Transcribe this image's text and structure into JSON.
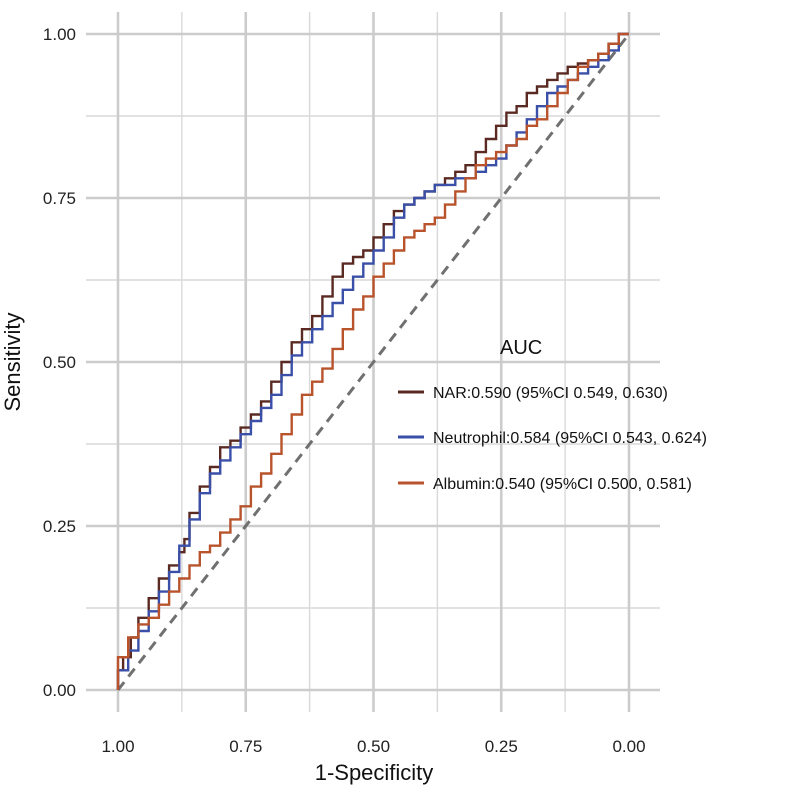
{
  "chart_data": {
    "type": "line",
    "xlabel": "1-Specificity",
    "ylabel": "Sensitivity",
    "x_reversed": true,
    "xlim": [
      1.0,
      0.0
    ],
    "ylim": [
      0.0,
      1.0
    ],
    "x_ticks": [
      "1.00",
      "0.75",
      "0.50",
      "0.25",
      "0.00"
    ],
    "y_ticks": [
      "0.00",
      "0.25",
      "0.50",
      "0.75",
      "1.00"
    ],
    "grid": true,
    "legend": {
      "title": "AUC",
      "placement": "right"
    },
    "reference_line": {
      "style": "dashed",
      "color": "#707070",
      "x": [
        1.0,
        0.0
      ],
      "y": [
        0.0,
        1.0
      ]
    },
    "series": [
      {
        "name": "NAR:0.590 (95%CI 0.549, 0.630)",
        "color": "#5a2a22",
        "x": [
          1.0,
          0.99,
          0.975,
          0.96,
          0.94,
          0.92,
          0.9,
          0.88,
          0.87,
          0.86,
          0.84,
          0.82,
          0.8,
          0.78,
          0.76,
          0.74,
          0.72,
          0.7,
          0.68,
          0.66,
          0.64,
          0.62,
          0.6,
          0.58,
          0.56,
          0.54,
          0.52,
          0.5,
          0.48,
          0.46,
          0.44,
          0.42,
          0.4,
          0.38,
          0.36,
          0.34,
          0.32,
          0.3,
          0.28,
          0.26,
          0.24,
          0.22,
          0.2,
          0.18,
          0.16,
          0.14,
          0.12,
          0.1,
          0.08,
          0.06,
          0.04,
          0.02,
          0.0
        ],
        "y": [
          0.0,
          0.03,
          0.05,
          0.08,
          0.11,
          0.14,
          0.17,
          0.19,
          0.21,
          0.23,
          0.27,
          0.31,
          0.34,
          0.37,
          0.38,
          0.4,
          0.42,
          0.44,
          0.47,
          0.5,
          0.53,
          0.55,
          0.57,
          0.6,
          0.63,
          0.65,
          0.66,
          0.67,
          0.69,
          0.71,
          0.73,
          0.74,
          0.75,
          0.76,
          0.77,
          0.78,
          0.79,
          0.8,
          0.82,
          0.84,
          0.86,
          0.88,
          0.89,
          0.91,
          0.92,
          0.93,
          0.94,
          0.95,
          0.955,
          0.96,
          0.97,
          0.985,
          1.0
        ]
      },
      {
        "name": "Neutrophil:0.584 (95%CI 0.543, 0.624)",
        "color": "#3a4fa8",
        "x": [
          1.0,
          0.98,
          0.96,
          0.94,
          0.92,
          0.9,
          0.88,
          0.86,
          0.84,
          0.82,
          0.8,
          0.78,
          0.76,
          0.74,
          0.72,
          0.7,
          0.68,
          0.66,
          0.64,
          0.62,
          0.6,
          0.58,
          0.56,
          0.54,
          0.52,
          0.5,
          0.48,
          0.46,
          0.44,
          0.42,
          0.4,
          0.38,
          0.36,
          0.34,
          0.32,
          0.3,
          0.28,
          0.26,
          0.24,
          0.22,
          0.2,
          0.18,
          0.16,
          0.14,
          0.12,
          0.1,
          0.08,
          0.06,
          0.04,
          0.02,
          0.0
        ],
        "y": [
          0.0,
          0.03,
          0.06,
          0.09,
          0.12,
          0.15,
          0.18,
          0.22,
          0.26,
          0.3,
          0.33,
          0.35,
          0.37,
          0.39,
          0.41,
          0.43,
          0.45,
          0.48,
          0.51,
          0.53,
          0.55,
          0.57,
          0.59,
          0.61,
          0.63,
          0.65,
          0.67,
          0.69,
          0.72,
          0.74,
          0.75,
          0.76,
          0.77,
          0.77,
          0.78,
          0.78,
          0.79,
          0.8,
          0.81,
          0.83,
          0.85,
          0.87,
          0.89,
          0.91,
          0.92,
          0.93,
          0.94,
          0.95,
          0.96,
          0.975,
          1.0
        ]
      },
      {
        "name": "Albumin:0.540 (95%CI 0.500, 0.581)",
        "color": "#b8532c",
        "x": [
          1.0,
          0.98,
          0.96,
          0.94,
          0.92,
          0.9,
          0.88,
          0.86,
          0.84,
          0.82,
          0.8,
          0.78,
          0.76,
          0.74,
          0.72,
          0.7,
          0.68,
          0.66,
          0.64,
          0.62,
          0.6,
          0.58,
          0.56,
          0.54,
          0.52,
          0.5,
          0.48,
          0.46,
          0.44,
          0.42,
          0.4,
          0.38,
          0.36,
          0.34,
          0.32,
          0.3,
          0.28,
          0.26,
          0.24,
          0.22,
          0.2,
          0.18,
          0.16,
          0.14,
          0.12,
          0.1,
          0.08,
          0.06,
          0.04,
          0.02,
          0.0
        ],
        "y": [
          0.0,
          0.05,
          0.08,
          0.1,
          0.11,
          0.13,
          0.15,
          0.17,
          0.19,
          0.21,
          0.22,
          0.24,
          0.26,
          0.28,
          0.31,
          0.33,
          0.36,
          0.39,
          0.42,
          0.45,
          0.47,
          0.49,
          0.52,
          0.55,
          0.58,
          0.6,
          0.63,
          0.65,
          0.67,
          0.69,
          0.7,
          0.71,
          0.72,
          0.74,
          0.76,
          0.78,
          0.8,
          0.81,
          0.82,
          0.83,
          0.84,
          0.86,
          0.87,
          0.89,
          0.91,
          0.93,
          0.95,
          0.96,
          0.97,
          0.985,
          1.0
        ]
      }
    ]
  }
}
